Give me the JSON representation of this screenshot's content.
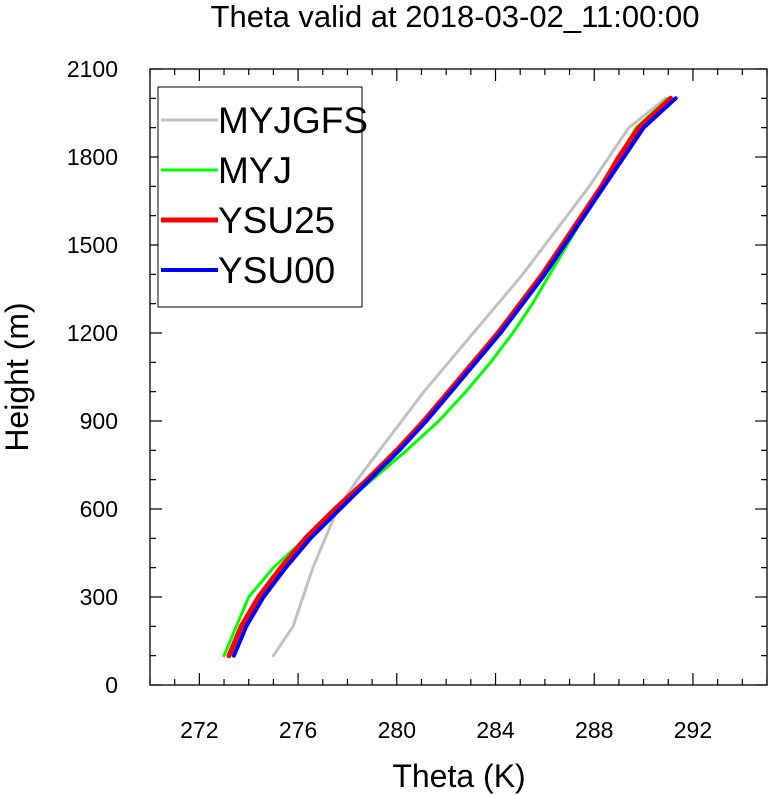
{
  "chart_data": {
    "type": "line",
    "title": "Theta valid at 2018-03-02_11:00:00",
    "xlabel": "Theta (K)",
    "ylabel": "Height (m)",
    "xlim": [
      270,
      295
    ],
    "ylim": [
      0,
      2100
    ],
    "xticks": [
      272,
      276,
      280,
      284,
      288,
      292
    ],
    "yticks": [
      0,
      300,
      600,
      900,
      1200,
      1500,
      1800,
      2100
    ],
    "grid": false,
    "legend_position": "top-left",
    "series": [
      {
        "name": "MYJGFS",
        "color": "#c0c0c0",
        "points": [
          [
            275.0,
            100
          ],
          [
            275.8,
            200
          ],
          [
            276.2,
            300
          ],
          [
            276.6,
            400
          ],
          [
            277.1,
            500
          ],
          [
            277.6,
            600
          ],
          [
            278.4,
            700
          ],
          [
            279.3,
            800
          ],
          [
            280.2,
            900
          ],
          [
            281.1,
            1000
          ],
          [
            282.1,
            1100
          ],
          [
            283.1,
            1200
          ],
          [
            284.1,
            1300
          ],
          [
            285.1,
            1400
          ],
          [
            286.0,
            1500
          ],
          [
            286.9,
            1600
          ],
          [
            287.8,
            1700
          ],
          [
            288.6,
            1800
          ],
          [
            289.4,
            1900
          ],
          [
            290.9,
            2000
          ]
        ]
      },
      {
        "name": "MYJ",
        "color": "#00ff00",
        "points": [
          [
            273.0,
            100
          ],
          [
            274.0,
            300
          ],
          [
            275.0,
            400
          ],
          [
            276.3,
            500
          ],
          [
            277.6,
            600
          ],
          [
            279.0,
            700
          ],
          [
            280.4,
            800
          ],
          [
            281.7,
            900
          ],
          [
            282.8,
            1000
          ],
          [
            283.8,
            1100
          ],
          [
            284.7,
            1200
          ],
          [
            285.5,
            1300
          ],
          [
            286.2,
            1400
          ],
          [
            286.9,
            1500
          ],
          [
            287.6,
            1600
          ],
          [
            288.3,
            1700
          ],
          [
            289.0,
            1800
          ],
          [
            289.7,
            1900
          ],
          [
            291.0,
            2000
          ]
        ]
      },
      {
        "name": "YSU25",
        "color": "#ff0000",
        "points": [
          [
            273.2,
            100
          ],
          [
            273.7,
            200
          ],
          [
            274.4,
            300
          ],
          [
            275.3,
            400
          ],
          [
            276.3,
            500
          ],
          [
            277.5,
            600
          ],
          [
            278.8,
            700
          ],
          [
            280.0,
            800
          ],
          [
            281.1,
            900
          ],
          [
            282.1,
            1000
          ],
          [
            283.1,
            1100
          ],
          [
            284.1,
            1200
          ],
          [
            285.0,
            1300
          ],
          [
            285.9,
            1400
          ],
          [
            286.7,
            1500
          ],
          [
            287.5,
            1600
          ],
          [
            288.3,
            1700
          ],
          [
            289.0,
            1800
          ],
          [
            289.8,
            1900
          ],
          [
            291.1,
            2000
          ]
        ]
      },
      {
        "name": "YSU00",
        "color": "#0000ff",
        "points": [
          [
            273.4,
            100
          ],
          [
            273.9,
            200
          ],
          [
            274.6,
            300
          ],
          [
            275.5,
            400
          ],
          [
            276.5,
            500
          ],
          [
            277.7,
            600
          ],
          [
            278.9,
            700
          ],
          [
            280.1,
            800
          ],
          [
            281.2,
            900
          ],
          [
            282.2,
            1000
          ],
          [
            283.2,
            1100
          ],
          [
            284.2,
            1200
          ],
          [
            285.1,
            1300
          ],
          [
            286.0,
            1400
          ],
          [
            286.8,
            1500
          ],
          [
            287.6,
            1600
          ],
          [
            288.4,
            1700
          ],
          [
            289.2,
            1800
          ],
          [
            290.0,
            1900
          ],
          [
            291.3,
            2000
          ]
        ]
      }
    ]
  }
}
